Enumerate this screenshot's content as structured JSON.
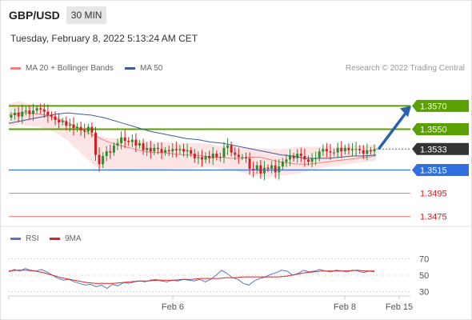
{
  "header": {
    "symbol": "GBP/USD",
    "timeframe": "30 MIN",
    "datetime": "Tuesday, February 8, 2022 5:13:24 AM CET",
    "copyright": "Research © 2022 Trading Central"
  },
  "colors": {
    "ma20": "#f08080",
    "band_fill": "#fde0e0",
    "ma50": "#3a5a9a",
    "resistance": "#5aa000",
    "support": "#2f6fe0",
    "target_low": "#f07070",
    "current_price": "#333333",
    "arrow": "#2a62b0",
    "candle_up": "#2e8b2e",
    "candle_down": "#d02020",
    "rsi": "#5577cc",
    "rsi_ma": "#dd2222"
  },
  "chart_data": [
    {
      "type": "candlestick",
      "title": "GBP/USD",
      "timeframe": "30 MIN",
      "x_ticks": [
        "Feb 6",
        "Feb 8",
        "Feb 15"
      ],
      "legend": [
        {
          "name": "MA 20 + Bollinger Bands",
          "color": "#f08080"
        },
        {
          "name": "MA 50",
          "color": "#3a5a9a"
        }
      ],
      "ylim": [
        1.347,
        1.3595
      ],
      "close_series": [
        1.3562,
        1.3564,
        1.3561,
        1.3565,
        1.3566,
        1.3563,
        1.3566,
        1.3568,
        1.3567,
        1.3565,
        1.3562,
        1.3561,
        1.3558,
        1.3556,
        1.3557,
        1.3553,
        1.3554,
        1.3551,
        1.3552,
        1.3549,
        1.3548,
        1.3552,
        1.3547,
        1.3528,
        1.352,
        1.3527,
        1.3531,
        1.353,
        1.3536,
        1.3538,
        1.3543,
        1.354,
        1.3539,
        1.3541,
        1.3536,
        1.3538,
        1.3532,
        1.3534,
        1.3531,
        1.3534,
        1.3533,
        1.353,
        1.3532,
        1.3531,
        1.3533,
        1.3532,
        1.3533,
        1.3531,
        1.3532,
        1.3529,
        1.3525,
        1.3526,
        1.3524,
        1.3527,
        1.3525,
        1.3529,
        1.3526,
        1.3526,
        1.3534,
        1.3536,
        1.353,
        1.3528,
        1.3526,
        1.3526,
        1.3525,
        1.3516,
        1.3515,
        1.3519,
        1.3512,
        1.3517,
        1.3516,
        1.3519,
        1.3513,
        1.3518,
        1.3522,
        1.3524,
        1.3527,
        1.3525,
        1.3529,
        1.3527,
        1.3524,
        1.3522,
        1.3525,
        1.3525,
        1.3531,
        1.3533,
        1.3531,
        1.353,
        1.353,
        1.3534,
        1.3531,
        1.3534,
        1.3532,
        1.3533,
        1.3533,
        1.3532,
        1.3529,
        1.3532,
        1.3531,
        1.3533
      ],
      "ma20_series": [
        1.3562,
        1.3564,
        1.3564,
        1.3563,
        1.3562,
        1.3559,
        1.3556,
        1.3552,
        1.3548,
        1.3544,
        1.354,
        1.3537,
        1.3535,
        1.3533,
        1.3531,
        1.353,
        1.353,
        1.3529,
        1.3528,
        1.3528,
        1.3527,
        1.3526,
        1.3526,
        1.3525,
        1.3525,
        1.3526,
        1.3526,
        1.3524,
        1.3522,
        1.3521,
        1.352,
        1.352,
        1.3521,
        1.3522,
        1.3523,
        1.3524,
        1.3525,
        1.3526,
        1.3527
      ],
      "band_upper": [
        1.3572,
        1.3574,
        1.3572,
        1.357,
        1.3566,
        1.3561,
        1.3557,
        1.3552,
        1.3548,
        1.3545,
        1.3543,
        1.3542,
        1.3541,
        1.354,
        1.354,
        1.3539,
        1.3539,
        1.3538,
        1.3538,
        1.3538,
        1.3538,
        1.3537,
        1.3536,
        1.3535,
        1.3534,
        1.3534,
        1.3534,
        1.3533,
        1.3533,
        1.3534,
        1.3535,
        1.3535,
        1.3535,
        1.3535,
        1.3535,
        1.3535,
        1.3536,
        1.3536,
        1.3537
      ],
      "band_lower": [
        1.3552,
        1.3554,
        1.3553,
        1.3552,
        1.355,
        1.3546,
        1.3541,
        1.3533,
        1.3525,
        1.3518,
        1.3515,
        1.3514,
        1.3514,
        1.3514,
        1.3515,
        1.3515,
        1.3515,
        1.3516,
        1.3516,
        1.3516,
        1.3517,
        1.3517,
        1.3516,
        1.3515,
        1.3513,
        1.3511,
        1.3509,
        1.3509,
        1.351,
        1.3511,
        1.3512,
        1.3514,
        1.3516,
        1.3518,
        1.3519,
        1.352,
        1.3521,
        1.3522,
        1.3523
      ],
      "ma50_series": [
        1.3555,
        1.3557,
        1.3559,
        1.3561,
        1.3563,
        1.3564,
        1.3563,
        1.3562,
        1.356,
        1.3557,
        1.3554,
        1.3551,
        1.3548,
        1.3546,
        1.3544,
        1.3542,
        1.3541,
        1.3539,
        1.3538,
        1.3536,
        1.3534,
        1.3532,
        1.353,
        1.3528,
        1.3527,
        1.3525,
        1.3525,
        1.3525,
        1.3526,
        1.3527,
        1.3527,
        1.3528
      ],
      "levels": [
        {
          "label": "1.3570",
          "value": 1.357,
          "kind": "resistance"
        },
        {
          "label": "1.3550",
          "value": 1.355,
          "kind": "resistance"
        },
        {
          "label": "1.3533",
          "value": 1.3533,
          "kind": "current"
        },
        {
          "label": "1.3515",
          "value": 1.3515,
          "kind": "pivot"
        },
        {
          "label": "1.3495",
          "value": 1.3495,
          "kind": "target"
        },
        {
          "label": "1.3475",
          "value": 1.3475,
          "kind": "target"
        }
      ]
    },
    {
      "type": "line",
      "title": "RSI",
      "legend": [
        {
          "name": "RSI",
          "color": "#5577cc"
        },
        {
          "name": "9MA",
          "color": "#dd2222"
        }
      ],
      "y_ticks": [
        "70",
        "50",
        "30"
      ],
      "ylim": [
        20,
        80
      ],
      "rsi_series": [
        54,
        57,
        55,
        58,
        56,
        55,
        57,
        54,
        50,
        46,
        44,
        45,
        42,
        40,
        38,
        39,
        36,
        38,
        34,
        39,
        37,
        41,
        40,
        42,
        43,
        42,
        44,
        45,
        43,
        42,
        44,
        43,
        45,
        44,
        43,
        45,
        42,
        45,
        50,
        56,
        52,
        47,
        45,
        40,
        38,
        43,
        46,
        48,
        51,
        53,
        56,
        55,
        50,
        52,
        56,
        54,
        55,
        57,
        55,
        54,
        56,
        55,
        54,
        56,
        55,
        53,
        55,
        54
      ],
      "ma_series": [
        55,
        56,
        56,
        55,
        53,
        50,
        47,
        45,
        43,
        41,
        40,
        40,
        40,
        41,
        42,
        43,
        43,
        44,
        44,
        44,
        45,
        45,
        46,
        46,
        46,
        47,
        47,
        48,
        48,
        48,
        48,
        48,
        49,
        51,
        53,
        54,
        55,
        55,
        55,
        55,
        56,
        55,
        55
      ]
    }
  ]
}
